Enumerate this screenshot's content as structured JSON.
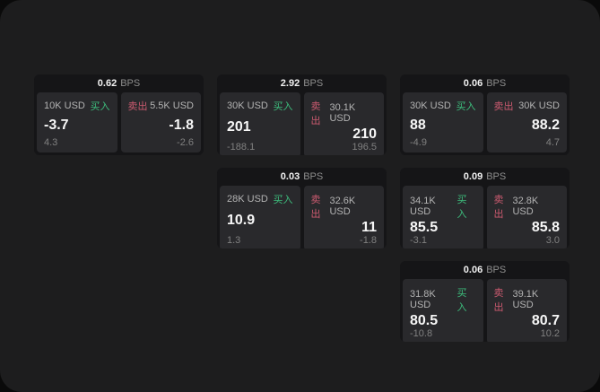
{
  "theme": {
    "outer_bg": "#0a0a0a",
    "panel_bg": "#1d1d1e",
    "card_bg": "#151517",
    "pane_bg": "#29292c",
    "buy_color": "#3dbd7d",
    "sell_color": "#cb5a6f"
  },
  "labels": {
    "bps_unit": "BPS",
    "buy": "买入",
    "sell": "卖出"
  },
  "cards": [
    {
      "bps": "0.62",
      "buy": {
        "notional": "10K USD",
        "price": "-3.7",
        "delta": "4.3"
      },
      "sell": {
        "notional": "5.5K USD",
        "price": "-1.8",
        "delta": "-2.6"
      }
    },
    {
      "bps": "2.92",
      "buy": {
        "notional": "30K USD",
        "price": "201",
        "delta": "-188.1"
      },
      "sell": {
        "notional": "30.1K USD",
        "price": "210",
        "delta": "196.5"
      }
    },
    {
      "bps": "0.06",
      "buy": {
        "notional": "30K USD",
        "price": "88",
        "delta": "-4.9"
      },
      "sell": {
        "notional": "30K USD",
        "price": "88.2",
        "delta": "4.7"
      }
    },
    {
      "bps": "0.03",
      "buy": {
        "notional": "28K USD",
        "price": "10.9",
        "delta": "1.3"
      },
      "sell": {
        "notional": "32.6K USD",
        "price": "11",
        "delta": "-1.8"
      }
    },
    {
      "bps": "0.09",
      "buy": {
        "notional": "34.1K USD",
        "price": "85.5",
        "delta": "-3.1"
      },
      "sell": {
        "notional": "32.8K USD",
        "price": "85.8",
        "delta": "3.0"
      }
    },
    {
      "bps": "0.06",
      "buy": {
        "notional": "31.8K USD",
        "price": "80.5",
        "delta": "-10.8"
      },
      "sell": {
        "notional": "39.1K USD",
        "price": "80.7",
        "delta": "10.2"
      }
    }
  ]
}
